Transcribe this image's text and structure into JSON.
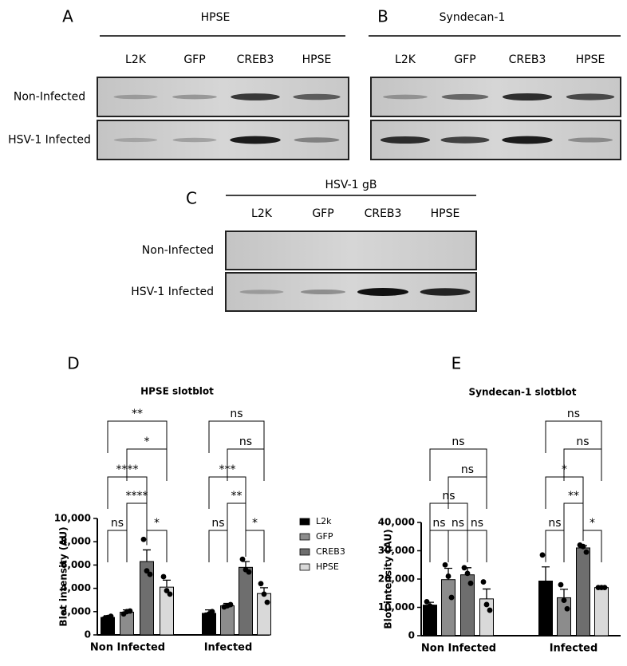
{
  "blots": [
    {
      "panel": "A",
      "title": "HPSE",
      "columns": [
        "L2K",
        "GFP",
        "CREB3",
        "HPSE"
      ],
      "rows": [
        "Non-Infected",
        "HSV-1 Infected"
      ]
    },
    {
      "panel": "B",
      "title": "Syndecan-1",
      "columns": [
        "L2K",
        "GFP",
        "CREB3",
        "HPSE"
      ]
    },
    {
      "panel": "C",
      "title": "HSV-1 gB",
      "columns": [
        "L2K",
        "GFP",
        "CREB3",
        "HPSE"
      ],
      "rows": [
        "Non-Infected",
        "HSV-1 Infected"
      ]
    }
  ],
  "chart_data": [
    {
      "type": "bar",
      "panel": "D",
      "title": "HPSE slotblot",
      "ylabel": "Blot intensity (AU)",
      "categories": [
        "Non Infected",
        "Infected"
      ],
      "series": [
        {
          "name": "L2k",
          "color": "#000000",
          "values": [
            1500,
            1850
          ],
          "errors": [
            150,
            300
          ],
          "points": [
            [
              1400,
              1500,
              1600
            ],
            [
              1700,
              1800,
              2000
            ]
          ]
        },
        {
          "name": "GFP",
          "color": "#8c8c8c",
          "values": [
            1950,
            2500
          ],
          "errors": [
            200,
            200
          ],
          "points": [
            [
              1800,
              2000,
              2050
            ],
            [
              2400,
              2500,
              2600
            ]
          ]
        },
        {
          "name": "CREB3",
          "color": "#6e6e6e",
          "values": [
            6300,
            5800
          ],
          "errors": [
            1000,
            500
          ],
          "points": [
            [
              8200,
              5500,
              5200
            ],
            [
              6500,
              5600,
              5400
            ]
          ]
        },
        {
          "name": "HPSE",
          "color": "#d9d9d9",
          "values": [
            4100,
            3550
          ],
          "errors": [
            600,
            500
          ],
          "points": [
            [
              5000,
              3800,
              3500
            ],
            [
              4400,
              3500,
              2800
            ]
          ]
        }
      ],
      "significance": [
        [
          "ns",
          "*",
          "****",
          "****",
          "*",
          "**"
        ],
        [
          "ns",
          "*",
          "**",
          "***",
          "ns",
          "ns"
        ]
      ],
      "ylim": [
        0,
        10000
      ],
      "yticks": [
        0,
        {
          "value": 2000,
          "label": "2,000"
        },
        {
          "value": 4000,
          "label": "4,000"
        },
        {
          "value": 6000,
          "label": "6,000"
        },
        {
          "value": 8000,
          "label": "8,000"
        },
        {
          "value": 10000,
          "label": "10,000"
        }
      ],
      "legend": "right"
    },
    {
      "type": "bar",
      "panel": "E",
      "title": "Syndecan-1 slotblot",
      "ylabel": "Blot intensity (AU)",
      "categories": [
        "Non Infected",
        "Infected"
      ],
      "series": [
        {
          "name": "L2k",
          "color": "#000000",
          "values": [
            10800,
            19300
          ],
          "errors": [
            1000,
            5000
          ],
          "points": [
            [
              12000,
              10500,
              10000
            ],
            [
              28500,
              15500,
              14000
            ]
          ]
        },
        {
          "name": "GFP",
          "color": "#8c8c8c",
          "values": [
            19800,
            13400
          ],
          "errors": [
            4000,
            3000
          ],
          "points": [
            [
              25000,
              21000,
              13500
            ],
            [
              18000,
              12500,
              9500
            ]
          ]
        },
        {
          "name": "CREB3",
          "color": "#6e6e6e",
          "values": [
            21500,
            31000
          ],
          "errors": [
            2500,
            800
          ],
          "points": [
            [
              24000,
              22000,
              18500
            ],
            [
              32000,
              31500,
              29500
            ]
          ]
        },
        {
          "name": "HPSE",
          "color": "#d9d9d9",
          "values": [
            13000,
            17000
          ],
          "errors": [
            3500,
            200
          ],
          "points": [
            [
              19000,
              11000,
              9000
            ],
            [
              17000,
              17000,
              17000
            ]
          ]
        }
      ],
      "significance": [
        [
          "ns",
          "ns",
          "ns",
          "ns",
          "ns",
          "ns"
        ],
        [
          "ns",
          "*",
          "**",
          "*",
          "ns",
          "ns"
        ]
      ],
      "ylim": [
        0,
        40000
      ],
      "yticks": [
        0,
        {
          "value": 10000,
          "label": "10,000"
        },
        {
          "value": 20000,
          "label": "20,000"
        },
        {
          "value": 30000,
          "label": "30,000"
        },
        {
          "value": 40000,
          "label": "40,000"
        }
      ]
    }
  ]
}
